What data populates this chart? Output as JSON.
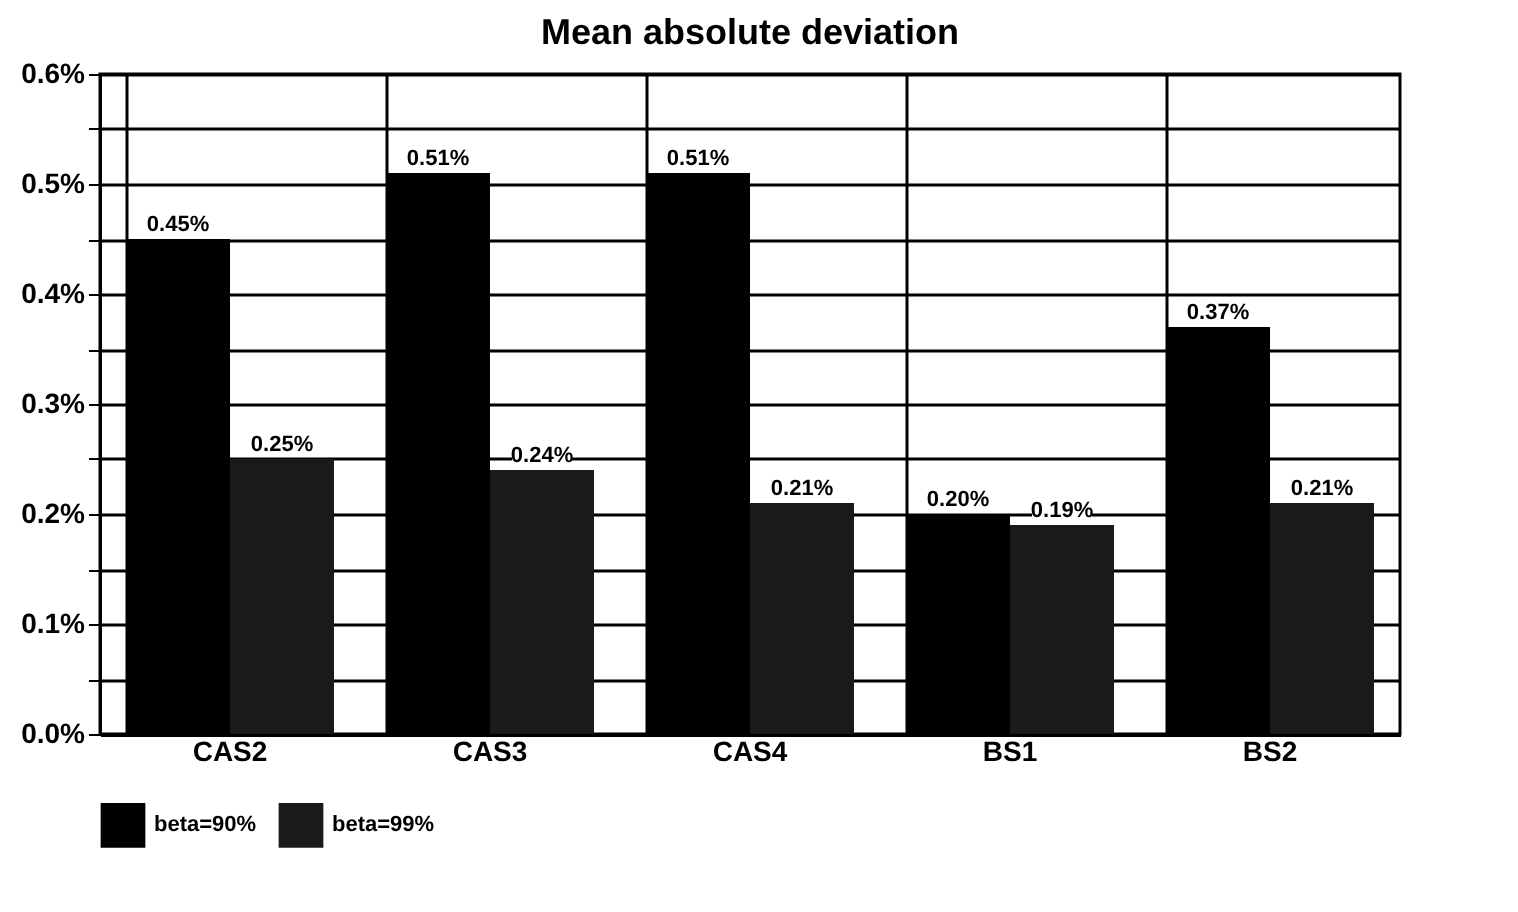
{
  "chart_data": {
    "type": "bar",
    "title": "Mean absolute deviation",
    "categories": [
      "CAS2",
      "CAS3",
      "CAS4",
      "BS1",
      "BS2"
    ],
    "series": [
      {
        "name": "beta=90%",
        "color": "#000000",
        "values": [
          0.45,
          0.51,
          0.51,
          0.2,
          0.37
        ],
        "value_labels": [
          "0.45%",
          "0.51%",
          "0.51%",
          "0.20%",
          "0.37%"
        ]
      },
      {
        "name": "beta=99%",
        "color": "#1a1a1a",
        "values": [
          0.25,
          0.24,
          0.21,
          0.19,
          0.21
        ],
        "value_labels": [
          "0.25%",
          "0.24%",
          "0.21%",
          "0.19%",
          "0.21%"
        ]
      }
    ],
    "ylim": [
      0,
      0.6
    ],
    "yticks": [
      {
        "value": 0,
        "label": "0.0%"
      },
      {
        "value": 0.05,
        "label": null
      },
      {
        "value": 0.1,
        "label": "0.1%"
      },
      {
        "value": 0.15,
        "label": null
      },
      {
        "value": 0.2,
        "label": "0.2%"
      },
      {
        "value": 0.25,
        "label": null
      },
      {
        "value": 0.3,
        "label": "0.3%"
      },
      {
        "value": 0.35,
        "label": null
      },
      {
        "value": 0.4,
        "label": "0.4%"
      },
      {
        "value": 0.45,
        "label": null
      },
      {
        "value": 0.5,
        "label": "0.5%"
      },
      {
        "value": 0.55,
        "label": null
      },
      {
        "value": 0.6,
        "label": "0.6%"
      }
    ],
    "grid": true,
    "legend": "bottom"
  }
}
